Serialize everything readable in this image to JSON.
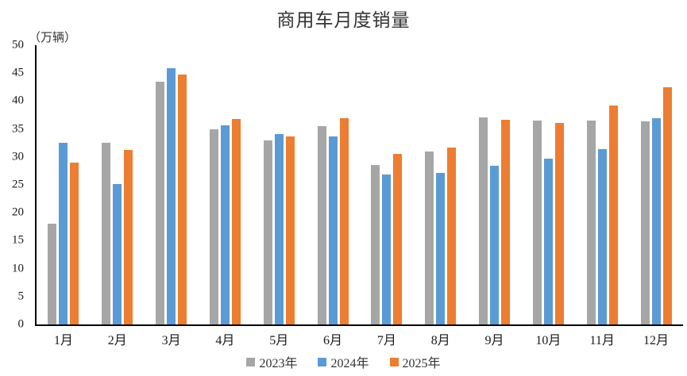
{
  "title": "商用车月度销量",
  "unit_label": "（万辆）",
  "chart_data": {
    "type": "bar",
    "title": "商用车月度销量",
    "ylabel": "（万辆）",
    "xlabel": "",
    "ylim": [
      0,
      50
    ],
    "ytick_step": 5,
    "ytick_labels": [
      "0",
      "5",
      "10",
      "15",
      "20",
      "25",
      "30",
      "35",
      "40",
      "45",
      "50"
    ],
    "grid": false,
    "legend_position": "bottom",
    "categories": [
      "1月",
      "2月",
      "3月",
      "4月",
      "5月",
      "6月",
      "7月",
      "8月",
      "9月",
      "10月",
      "11月",
      "12月"
    ],
    "series": [
      {
        "name": "2023年",
        "color": "#A6A6A6",
        "values": [
          18.0,
          32.5,
          43.5,
          34.9,
          33.0,
          35.5,
          28.6,
          31.0,
          37.1,
          36.5,
          36.5,
          36.3
        ]
      },
      {
        "name": "2024年",
        "color": "#5B9BD5",
        "values": [
          32.5,
          25.1,
          45.9,
          35.7,
          34.1,
          33.7,
          26.8,
          27.2,
          28.4,
          29.7,
          31.4,
          36.9
        ]
      },
      {
        "name": "2025年",
        "color": "#ED7D31",
        "values": [
          29.0,
          31.3,
          44.7,
          36.8,
          33.6,
          36.9,
          30.5,
          31.7,
          36.7,
          36.1,
          39.2,
          42.5
        ]
      }
    ]
  }
}
